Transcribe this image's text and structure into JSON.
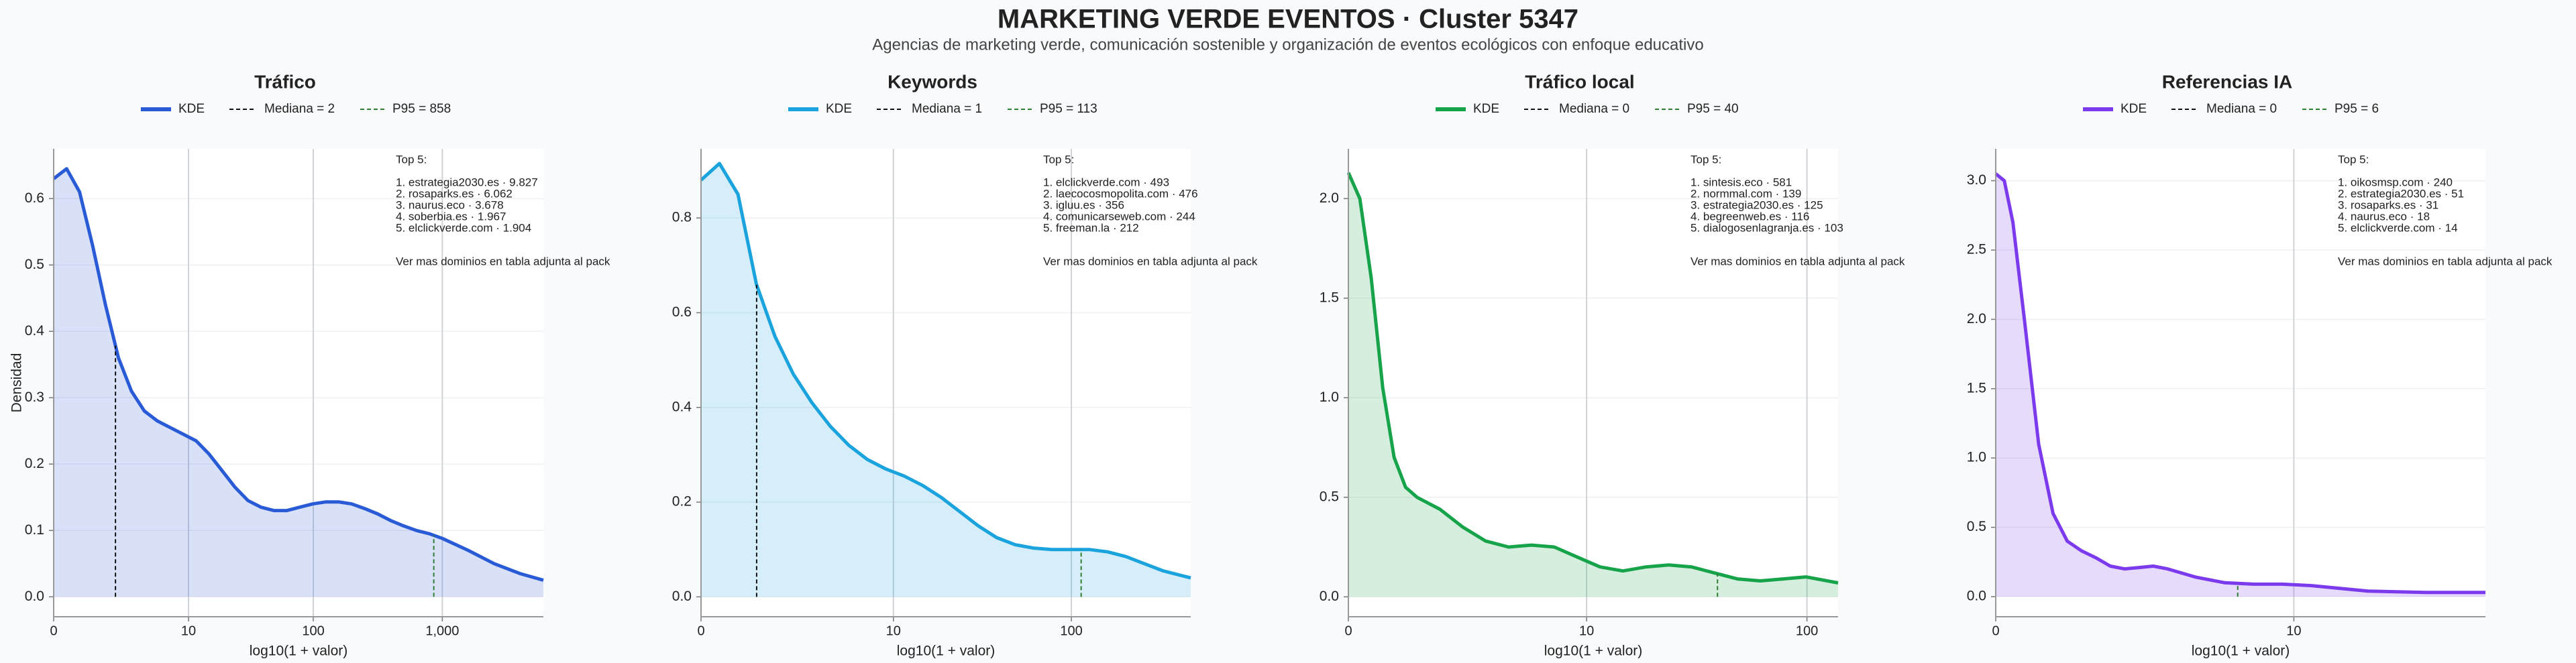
{
  "title": "MARKETING VERDE EVENTOS · Cluster 5347",
  "subtitle": "Agencias de marketing verde, comunicación sostenible y organización de eventos ecológicos con enfoque educativo",
  "chart_data": [
    {
      "type": "area",
      "title": "Tráfico",
      "xlabel": "log10(1 + valor)",
      "ylabel": "Densidad",
      "x": [
        0,
        0.1,
        0.2,
        0.3,
        0.4,
        0.5,
        0.6,
        0.7,
        0.8,
        0.9,
        1.0,
        1.1,
        1.2,
        1.3,
        1.4,
        1.5,
        1.6,
        1.7,
        1.8,
        1.9,
        2.0,
        2.1,
        2.2,
        2.3,
        2.4,
        2.5,
        2.6,
        2.7,
        2.8,
        2.9,
        3.0,
        3.2,
        3.4,
        3.6,
        3.78
      ],
      "series": [
        {
          "name": "KDE",
          "color": "#2a5bd7",
          "values": [
            0.63,
            0.645,
            0.61,
            0.53,
            0.44,
            0.36,
            0.31,
            0.28,
            0.265,
            0.255,
            0.245,
            0.235,
            0.215,
            0.19,
            0.165,
            0.145,
            0.135,
            0.13,
            0.13,
            0.135,
            0.14,
            0.143,
            0.143,
            0.14,
            0.133,
            0.125,
            0.115,
            0.107,
            0.1,
            0.095,
            0.088,
            0.07,
            0.05,
            0.035,
            0.025
          ]
        }
      ],
      "median": {
        "label": "Mediana = 2",
        "x": 0.477,
        "color": "#111111"
      },
      "p95": {
        "label": "P95 = 858",
        "x": 2.934,
        "color": "#2e7d32"
      },
      "xlim": [
        0,
        3.78
      ],
      "ylim": [
        -0.03,
        0.675
      ],
      "xticks": [
        0,
        {
          "value": 1.041,
          "label": "10"
        },
        {
          "value": 2.004,
          "label": "100"
        },
        {
          "value": 3.0,
          "label": "1,000"
        }
      ],
      "yticks": [
        {
          "value": 0,
          "label": "0.0"
        },
        0.1,
        0.2,
        0.3,
        0.4,
        0.5,
        0.6
      ],
      "annotation_title": "Top 5:",
      "annotation_lines": [
        "1. estrategia2030.es · 9.827",
        "2. rosaparks.es · 6.062",
        "3. naurus.eco · 3.678",
        "4. soberbia.es · 1.967",
        "5. elclickverde.com · 1.904"
      ],
      "annotation_note": "Ver mas dominios en tabla adjunta al pack"
    },
    {
      "type": "area",
      "title": "Keywords",
      "xlabel": "log10(1 + valor)",
      "x": [
        0,
        0.1,
        0.2,
        0.3,
        0.4,
        0.5,
        0.6,
        0.7,
        0.8,
        0.9,
        1.0,
        1.1,
        1.2,
        1.3,
        1.4,
        1.5,
        1.6,
        1.7,
        1.8,
        1.9,
        2.0,
        2.1,
        2.2,
        2.3,
        2.4,
        2.5,
        2.65
      ],
      "series": [
        {
          "name": "KDE",
          "color": "#1aa3dc",
          "values": [
            0.88,
            0.915,
            0.85,
            0.66,
            0.55,
            0.47,
            0.41,
            0.36,
            0.32,
            0.29,
            0.27,
            0.255,
            0.235,
            0.21,
            0.18,
            0.15,
            0.125,
            0.11,
            0.103,
            0.1,
            0.1,
            0.1,
            0.095,
            0.085,
            0.07,
            0.055,
            0.04
          ]
        }
      ],
      "median": {
        "label": "Mediana = 1",
        "x": 0.301,
        "color": "#111111"
      },
      "p95": {
        "label": "P95 = 113",
        "x": 2.057,
        "color": "#2e7d32"
      },
      "xlim": [
        0,
        2.65
      ],
      "ylim": [
        -0.042,
        0.946
      ],
      "xticks": [
        0,
        {
          "value": 1.041,
          "label": "10"
        },
        {
          "value": 2.004,
          "label": "100"
        }
      ],
      "yticks": [
        {
          "value": 0,
          "label": "0.0"
        },
        0.2,
        0.4,
        0.6,
        0.8
      ],
      "annotation_title": "Top 5:",
      "annotation_lines": [
        "1. elclickverde.com · 493",
        "2. laecocosmopolita.com · 476",
        "3. igluu.es · 356",
        "4. comunicarseweb.com · 244",
        "5. freeman.la · 212"
      ],
      "annotation_note": "Ver mas dominios en tabla adjunta al pack"
    },
    {
      "type": "area",
      "title": "Tráfico local",
      "xlabel": "log10(1 + valor)",
      "x": [
        0,
        0.05,
        0.1,
        0.15,
        0.2,
        0.25,
        0.3,
        0.4,
        0.5,
        0.6,
        0.7,
        0.8,
        0.9,
        1.0,
        1.1,
        1.2,
        1.3,
        1.4,
        1.5,
        1.6,
        1.7,
        1.8,
        1.9,
        2.0,
        2.14
      ],
      "series": [
        {
          "name": "KDE",
          "color": "#16a34a",
          "values": [
            2.13,
            2.0,
            1.6,
            1.05,
            0.7,
            0.55,
            0.5,
            0.44,
            0.35,
            0.28,
            0.25,
            0.26,
            0.25,
            0.2,
            0.15,
            0.13,
            0.15,
            0.16,
            0.15,
            0.12,
            0.09,
            0.08,
            0.09,
            0.1,
            0.07
          ]
        }
      ],
      "median": {
        "label": "Mediana = 0",
        "x": 0,
        "color": "#111111"
      },
      "p95": {
        "label": "P95 = 40",
        "x": 1.613,
        "color": "#2e7d32"
      },
      "xlim": [
        0,
        2.14
      ],
      "ylim": [
        -0.1,
        2.25
      ],
      "xticks": [
        0,
        {
          "value": 1.041,
          "label": "10"
        },
        {
          "value": 2.004,
          "label": "100"
        }
      ],
      "yticks": [
        {
          "value": 0,
          "label": "0.0"
        },
        0.5,
        {
          "value": 1,
          "label": "1.0"
        },
        1.5,
        {
          "value": 2,
          "label": "2.0"
        }
      ],
      "annotation_title": "Top 5:",
      "annotation_lines": [
        "1. sintesis.eco · 581",
        "2. normmal.com · 139",
        "3. estrategia2030.es · 125",
        "4. begreenweb.es · 116",
        "5. dialogosenlagranja.es · 103"
      ],
      "annotation_note": "Ver mas dominios en tabla adjunta al pack"
    },
    {
      "type": "area",
      "title": "Referencias IA",
      "xlabel": "log10(1 + valor)",
      "x": [
        0,
        0.03,
        0.06,
        0.1,
        0.15,
        0.2,
        0.25,
        0.3,
        0.35,
        0.4,
        0.45,
        0.5,
        0.55,
        0.6,
        0.7,
        0.8,
        0.9,
        1.0,
        1.1,
        1.2,
        1.3,
        1.4,
        1.5,
        1.71
      ],
      "series": [
        {
          "name": "KDE",
          "color": "#7c3aed",
          "values": [
            3.05,
            3.0,
            2.7,
            2.0,
            1.1,
            0.6,
            0.4,
            0.33,
            0.28,
            0.22,
            0.2,
            0.21,
            0.22,
            0.2,
            0.14,
            0.1,
            0.09,
            0.09,
            0.08,
            0.06,
            0.04,
            0.035,
            0.03,
            0.03
          ]
        }
      ],
      "median": {
        "label": "Mediana = 0",
        "x": 0,
        "color": "#111111"
      },
      "p95": {
        "label": "P95 = 6",
        "x": 0.845,
        "color": "#2e7d32"
      },
      "xlim": [
        0,
        1.71
      ],
      "ylim": [
        -0.145,
        3.23
      ],
      "xticks": [
        0,
        {
          "value": 1.041,
          "label": "10"
        }
      ],
      "yticks": [
        {
          "value": 0,
          "label": "0.0"
        },
        0.5,
        {
          "value": 1,
          "label": "1.0"
        },
        1.5,
        {
          "value": 2,
          "label": "2.0"
        },
        2.5,
        {
          "value": 3,
          "label": "3.0"
        }
      ],
      "annotation_title": "Top 5:",
      "annotation_lines": [
        "1. oikosmsp.com · 240",
        "2. estrategia2030.es · 51",
        "3. rosaparks.es · 31",
        "4. naurus.eco · 18",
        "5. elclickverde.com · 14"
      ],
      "annotation_note": "Ver mas dominios en tabla adjunta al pack"
    }
  ]
}
